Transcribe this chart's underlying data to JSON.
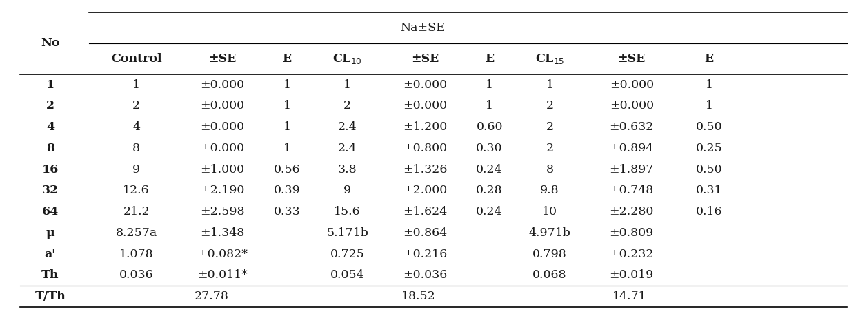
{
  "title": "Na±SE",
  "rows": [
    [
      "1",
      "1",
      "±0.000",
      "1",
      "1",
      "±0.000",
      "1",
      "1",
      "±0.000",
      "1"
    ],
    [
      "2",
      "2",
      "±0.000",
      "1",
      "2",
      "±0.000",
      "1",
      "2",
      "±0.000",
      "1"
    ],
    [
      "4",
      "4",
      "±0.000",
      "1",
      "2.4",
      "±1.200",
      "0.60",
      "2",
      "±0.632",
      "0.50"
    ],
    [
      "8",
      "8",
      "±0.000",
      "1",
      "2.4",
      "±0.800",
      "0.30",
      "2",
      "±0.894",
      "0.25"
    ],
    [
      "16",
      "9",
      "±1.000",
      "0.56",
      "3.8",
      "±1.326",
      "0.24",
      "8",
      "±1.897",
      "0.50"
    ],
    [
      "32",
      "12.6",
      "±2.190",
      "0.39",
      "9",
      "±2.000",
      "0.28",
      "9.8",
      "±0.748",
      "0.31"
    ],
    [
      "64",
      "21.2",
      "±2.598",
      "0.33",
      "15.6",
      "±1.624",
      "0.24",
      "10",
      "±2.280",
      "0.16"
    ],
    [
      "μ",
      "8.257a",
      "±1.348",
      "",
      "5.171b",
      "±0.864",
      "",
      "4.971b",
      "±0.809",
      ""
    ],
    [
      "a'",
      "1.078",
      "±0.082*",
      "",
      "0.725",
      "±0.216",
      "",
      "0.798",
      "±0.232",
      ""
    ],
    [
      "Th",
      "0.036",
      "±0.011*",
      "",
      "0.054",
      "±0.036",
      "",
      "0.068",
      "±0.019",
      ""
    ],
    [
      "T/Th",
      "27.78",
      "",
      "",
      "18.52",
      "",
      "",
      "14.71",
      "",
      ""
    ]
  ],
  "col_headers": [
    "Control",
    "±SE",
    "E",
    "CL$_{10}$",
    "±SE",
    "E",
    "CL$_{15}$",
    "±SE",
    "E"
  ],
  "bg_color": "#ffffff",
  "text_color": "#1a1a1a",
  "font_size": 12.5,
  "figsize": [
    12.57,
    4.59
  ],
  "dpi": 100
}
